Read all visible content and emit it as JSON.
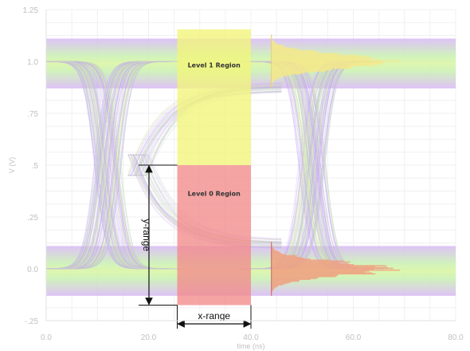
{
  "chart_data": {
    "type": "eye-diagram",
    "xlabel": "time (ns)",
    "ylabel": "V (V)",
    "xlim": [
      0,
      80
    ],
    "ylim": [
      -0.25,
      1.25
    ],
    "x_ticks": [
      {
        "value": 0,
        "label": "0.0"
      },
      {
        "value": 20,
        "label": "20.0"
      },
      {
        "value": 40,
        "label": "40.0"
      },
      {
        "value": 60,
        "label": "60.0"
      },
      {
        "value": 80,
        "label": "80.0"
      }
    ],
    "y_ticks": [
      {
        "value": 1.25,
        "label": "1.25"
      },
      {
        "value": 1.0,
        "label": "1.0"
      },
      {
        "value": 0.75,
        "label": ".75"
      },
      {
        "value": 0.5,
        "label": ".5"
      },
      {
        "value": 0.25,
        "label": ".25"
      },
      {
        "value": 0.0,
        "label": "0.0"
      },
      {
        "value": -0.25,
        "label": "-.25"
      }
    ],
    "grid": true,
    "levels": {
      "high": 1.0,
      "low": 0.0
    },
    "crossings_x": [
      12,
      52
    ],
    "edge_half_width": 7,
    "regions": [
      {
        "name": "Level 1 Region",
        "x": [
          25.6,
          40.0
        ],
        "y": [
          0.5,
          1.155
        ],
        "color": "#f2f57a"
      },
      {
        "name": "Level 0 Region",
        "x": [
          25.6,
          40.0
        ],
        "y": [
          -0.175,
          0.5
        ],
        "color": "#f28a8a"
      }
    ],
    "histograms": [
      {
        "level": 1.0,
        "x_start": 44,
        "y_spread": 0.13,
        "max_length": 26,
        "color": "#f5e88a"
      },
      {
        "level": 0.0,
        "x_start": 44,
        "y_spread": 0.13,
        "max_length": 26,
        "color": "#f0a080"
      }
    ],
    "annotations": {
      "x_range": {
        "label": "x-range",
        "x": [
          25.6,
          40.0
        ],
        "y": -0.175
      },
      "y_range": {
        "label": "y-range",
        "x": 25.6,
        "y": [
          -0.175,
          0.5
        ]
      }
    }
  }
}
